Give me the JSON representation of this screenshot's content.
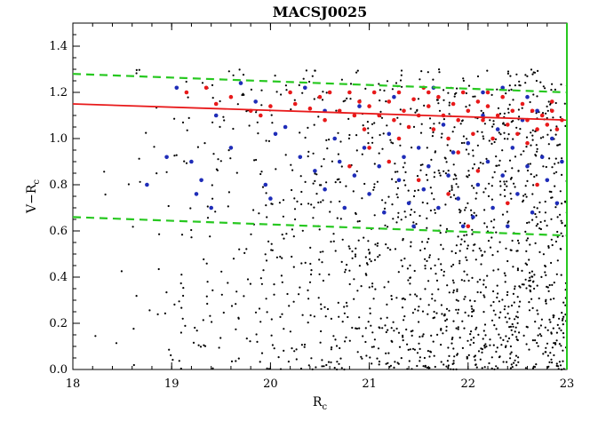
{
  "chart_data": {
    "type": "scatter",
    "title": "MACSJ0025",
    "xlabel": "R",
    "xlabel_sub": "c",
    "ylabel": "V−R",
    "ylabel_sub": "c",
    "xlim": [
      18,
      23
    ],
    "ylim": [
      0,
      1.5
    ],
    "x_ticks": [
      "18",
      "19",
      "20",
      "21",
      "22",
      "23"
    ],
    "y_ticks": [
      "0.0",
      "0.2",
      "0.4",
      "0.6",
      "0.8",
      "1.0",
      "1.2",
      "1.4"
    ],
    "grid": false,
    "colors": {
      "red": "#e8191a",
      "blue": "#1f2db8",
      "black": "#000000",
      "green": "#27c820",
      "fit": "#e8191a"
    },
    "lines": [
      {
        "color": "green",
        "dash": true,
        "x": [
          18,
          23
        ],
        "y": [
          1.28,
          1.2
        ]
      },
      {
        "color": "green",
        "dash": true,
        "x": [
          18,
          23
        ],
        "y": [
          0.66,
          0.58
        ]
      },
      {
        "color": "red",
        "dash": false,
        "x": [
          18,
          23
        ],
        "y": [
          1.15,
          1.08
        ]
      }
    ],
    "series": [
      {
        "color": "red",
        "points": [
          [
            19.15,
            1.2
          ],
          [
            19.35,
            1.22
          ],
          [
            19.45,
            1.15
          ],
          [
            19.6,
            1.18
          ],
          [
            19.8,
            1.12
          ],
          [
            19.9,
            1.1
          ],
          [
            20.0,
            1.14
          ],
          [
            20.2,
            1.2
          ],
          [
            20.25,
            1.15
          ],
          [
            20.4,
            1.13
          ],
          [
            20.5,
            1.18
          ],
          [
            20.55,
            1.08
          ],
          [
            20.7,
            1.12
          ],
          [
            20.8,
            1.2
          ],
          [
            20.85,
            1.1
          ],
          [
            20.9,
            1.16
          ],
          [
            20.95,
            1.04
          ],
          [
            21.0,
            1.14
          ],
          [
            21.05,
            1.2
          ],
          [
            21.1,
            1.1
          ],
          [
            21.2,
            1.16
          ],
          [
            21.25,
            1.08
          ],
          [
            21.3,
            1.2
          ],
          [
            21.35,
            1.12
          ],
          [
            21.4,
            1.05
          ],
          [
            21.45,
            1.17
          ],
          [
            21.5,
            1.1
          ],
          [
            21.55,
            1.22
          ],
          [
            21.6,
            1.14
          ],
          [
            21.65,
            1.04
          ],
          [
            21.7,
            1.18
          ],
          [
            21.75,
            1.1
          ],
          [
            21.8,
            1.0
          ],
          [
            21.85,
            1.15
          ],
          [
            21.9,
            1.08
          ],
          [
            21.95,
            1.2
          ],
          [
            22.0,
            1.12
          ],
          [
            22.05,
            1.02
          ],
          [
            22.1,
            1.16
          ],
          [
            22.15,
            1.08
          ],
          [
            22.2,
            1.14
          ],
          [
            22.25,
            1.0
          ],
          [
            22.3,
            1.1
          ],
          [
            22.35,
            1.18
          ],
          [
            22.4,
            1.06
          ],
          [
            22.45,
            1.12
          ],
          [
            22.5,
            1.02
          ],
          [
            22.55,
            1.15
          ],
          [
            22.6,
            1.08
          ],
          [
            22.65,
            1.12
          ],
          [
            22.7,
            1.04
          ],
          [
            22.75,
            1.1
          ],
          [
            22.8,
            1.06
          ],
          [
            22.85,
            1.12
          ],
          [
            22.9,
            1.04
          ],
          [
            22.95,
            1.08
          ],
          [
            21.2,
            0.9
          ],
          [
            21.5,
            0.82
          ],
          [
            21.8,
            0.76
          ],
          [
            22.1,
            0.86
          ],
          [
            22.4,
            0.72
          ],
          [
            22.7,
            0.8
          ],
          [
            21.0,
            0.96
          ],
          [
            20.8,
            0.88
          ],
          [
            22.2,
            1.2
          ],
          [
            21.9,
            0.94
          ],
          [
            22.6,
            0.98
          ],
          [
            20.6,
            1.2
          ],
          [
            21.6,
            1.2
          ],
          [
            22.85,
            1.16
          ],
          [
            21.3,
            1.0
          ],
          [
            22.0,
            0.62
          ]
        ]
      },
      {
        "color": "blue",
        "points": [
          [
            18.75,
            0.8
          ],
          [
            18.95,
            0.92
          ],
          [
            19.05,
            1.22
          ],
          [
            19.2,
            0.9
          ],
          [
            19.25,
            0.76
          ],
          [
            19.3,
            0.82
          ],
          [
            19.4,
            0.7
          ],
          [
            19.45,
            1.1
          ],
          [
            19.6,
            0.96
          ],
          [
            19.7,
            1.24
          ],
          [
            19.85,
            1.16
          ],
          [
            19.95,
            0.8
          ],
          [
            20.0,
            0.74
          ],
          [
            20.05,
            1.02
          ],
          [
            20.15,
            1.05
          ],
          [
            20.3,
            0.92
          ],
          [
            20.35,
            1.22
          ],
          [
            20.45,
            0.86
          ],
          [
            20.55,
            0.78
          ],
          [
            20.65,
            1.0
          ],
          [
            20.7,
            0.9
          ],
          [
            20.75,
            0.7
          ],
          [
            20.85,
            0.84
          ],
          [
            20.9,
            1.14
          ],
          [
            20.95,
            0.96
          ],
          [
            21.0,
            0.76
          ],
          [
            21.1,
            0.88
          ],
          [
            21.15,
            0.68
          ],
          [
            21.2,
            1.02
          ],
          [
            21.3,
            0.82
          ],
          [
            21.35,
            0.92
          ],
          [
            21.4,
            0.72
          ],
          [
            21.5,
            0.96
          ],
          [
            21.55,
            0.78
          ],
          [
            21.6,
            0.88
          ],
          [
            21.7,
            0.7
          ],
          [
            21.75,
            1.06
          ],
          [
            21.8,
            0.84
          ],
          [
            21.85,
            0.94
          ],
          [
            21.9,
            0.74
          ],
          [
            22.0,
            0.98
          ],
          [
            22.05,
            0.66
          ],
          [
            22.1,
            0.8
          ],
          [
            22.15,
            1.1
          ],
          [
            22.2,
            0.9
          ],
          [
            22.25,
            0.7
          ],
          [
            22.3,
            1.04
          ],
          [
            22.35,
            0.84
          ],
          [
            22.4,
            0.62
          ],
          [
            22.45,
            0.96
          ],
          [
            22.5,
            0.76
          ],
          [
            22.55,
            1.08
          ],
          [
            22.6,
            0.88
          ],
          [
            22.65,
            0.68
          ],
          [
            22.7,
            1.12
          ],
          [
            22.75,
            0.92
          ],
          [
            22.8,
            0.82
          ],
          [
            22.85,
            1.0
          ],
          [
            22.9,
            0.72
          ],
          [
            22.95,
            0.9
          ],
          [
            21.25,
            1.18
          ],
          [
            21.65,
            1.22
          ],
          [
            22.15,
            1.2
          ],
          [
            22.6,
            1.18
          ],
          [
            20.55,
            1.12
          ],
          [
            21.45,
            0.62
          ],
          [
            21.95,
            0.62
          ],
          [
            22.35,
            1.22
          ]
        ]
      },
      {
        "color": "black",
        "random": {
          "count": 1500,
          "seed": 7,
          "x_range": [
            18,
            23
          ],
          "y_range": [
            0,
            1.3
          ]
        }
      }
    ]
  }
}
